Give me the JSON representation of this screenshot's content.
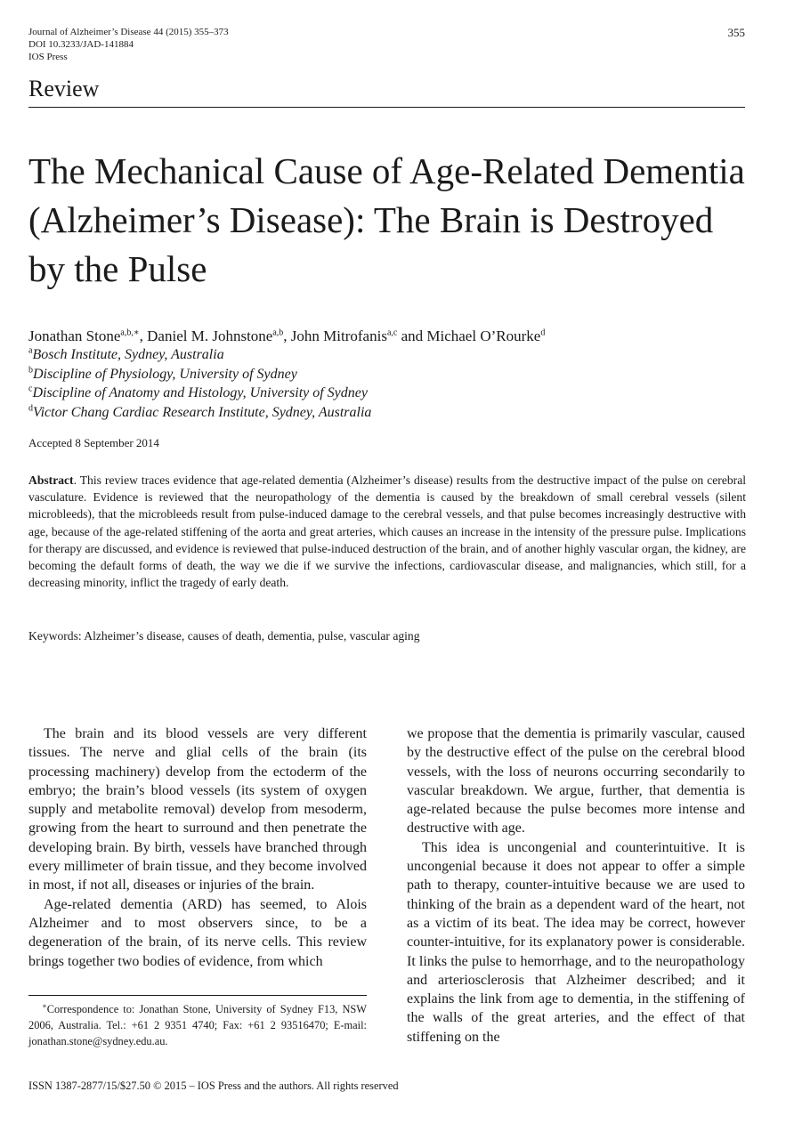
{
  "header": {
    "journal_line1": "Journal of Alzheimer’s Disease 44 (2015) 355–373",
    "journal_line2": "DOI 10.3233/JAD-141884",
    "journal_line3": "IOS Press",
    "page_number": "355"
  },
  "section_label": "Review",
  "title": "The Mechanical Cause of Age-Related Dementia (Alzheimer’s Disease): The Brain is Destroyed by the Pulse",
  "authors": [
    {
      "name": "Jonathan Stone",
      "sup": "a,b,∗",
      "sep": ", "
    },
    {
      "name": "Daniel M. Johnstone",
      "sup": "a,b",
      "sep": ", "
    },
    {
      "name": "John Mitrofanis",
      "sup": "a,c",
      "sep": " and "
    },
    {
      "name": "Michael O’Rourke",
      "sup": "d",
      "sep": ""
    }
  ],
  "affiliations": [
    {
      "mark": "a",
      "text": "Bosch Institute, Sydney, Australia"
    },
    {
      "mark": "b",
      "text": "Discipline of Physiology, University of Sydney"
    },
    {
      "mark": "c",
      "text": "Discipline of Anatomy and Histology, University of Sydney"
    },
    {
      "mark": "d",
      "text": "Victor Chang Cardiac Research Institute, Sydney, Australia"
    }
  ],
  "accepted": "Accepted 8 September 2014",
  "abstract": {
    "label": "Abstract",
    "text": ". This review traces evidence that age-related dementia (Alzheimer’s disease) results from the destructive impact of the pulse on cerebral vasculature. Evidence is reviewed that the neuropathology of the dementia is caused by the breakdown of small cerebral vessels (silent microbleeds), that the microbleeds result from pulse-induced damage to the cerebral vessels, and that pulse becomes increasingly destructive with age, because of the age-related stiffening of the aorta and great arteries, which causes an increase in the intensity of the pressure pulse. Implications for therapy are discussed, and evidence is reviewed that pulse-induced destruction of the brain, and of another highly vascular organ, the kidney, are becoming the default forms of death, the way we die if we survive the infections, cardiovascular disease, and malignancies, which still, for a decreasing minority, inflict the tragedy of early death."
  },
  "keywords": "Keywords: Alzheimer’s disease, causes of death, dementia, pulse, vascular aging",
  "body": {
    "left_paragraphs": [
      "The brain and its blood vessels are very different tissues. The nerve and glial cells of the brain (its processing machinery) develop from the ectoderm of the embryo; the brain’s blood vessels (its system of oxygen supply and metabolite removal) develop from mesoderm, growing from the heart to surround and then penetrate the developing brain. By birth, vessels have branched through every millimeter of brain tissue, and they become involved in most, if not all, diseases or injuries of the brain.",
      "Age-related dementia (ARD) has seemed, to Alois Alzheimer and to most observers since, to be a degeneration of the brain, of its nerve cells. This review brings together two bodies of evidence, from which"
    ],
    "right_paragraphs": [
      "we propose that the dementia is primarily vascular, caused by the destructive effect of the pulse on the cerebral blood vessels, with the loss of neurons occurring secondarily to vascular breakdown. We argue, further, that dementia is age-related because the pulse becomes more intense and destructive with age.",
      "This idea is uncongenial and counterintuitive. It is uncongenial because it does not appear to offer a simple path to therapy, counter-intuitive because we are used to thinking of the brain as a dependent ward of the heart, not as a victim of its beat. The idea may be correct, however counter-intuitive, for its explanatory power is considerable. It links the pulse to hemorrhage, and to the neuropathology and arteriosclerosis that Alzheimer described; and it explains the link from age to dementia, in the stiffening of the walls of the great arteries, and the effect of that stiffening on the"
    ]
  },
  "footnote": {
    "mark": "∗",
    "text": "Correspondence to: Jonathan Stone, University of Sydney F13, NSW 2006, Australia. Tel.: +61 2 9351 4740; Fax: +61 2 93516470; E-mail: jonathan.stone@sydney.edu.au."
  },
  "issn": "ISSN 1387-2877/15/$27.50 © 2015 – IOS Press and the authors. All rights reserved"
}
